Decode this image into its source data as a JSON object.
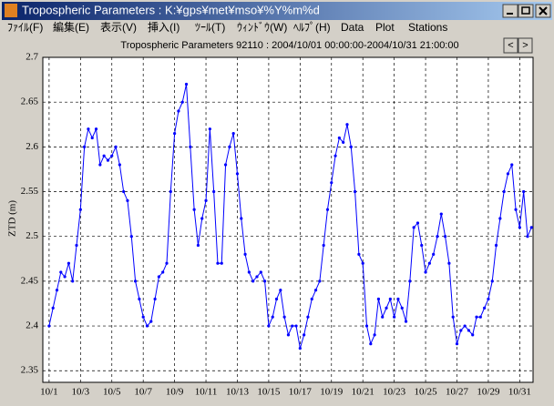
{
  "window": {
    "title": "Tropospheric Parameters : K:¥gps¥met¥mso¥%Y%m%d",
    "menu": [
      "ﾌｧｲﾙ(F)",
      "編集(E)",
      "表示(V)",
      "挿入(I)",
      "ﾂｰﾙ(T)",
      "ｳｨﾝﾄﾞｳ(W)",
      "ﾍﾙﾌﾟ(H)",
      "Data",
      "Plot",
      "Stations"
    ],
    "nav_buttons": [
      "<",
      ">"
    ]
  },
  "chart_data": {
    "type": "line",
    "title": "Tropospheric Parameters 92110 : 2004/10/01 00:00:00-2004/10/31 21:00:00",
    "y_label": "ZTD (m)",
    "x": [
      1,
      1.25,
      1.5,
      1.75,
      2,
      2.25,
      2.5,
      2.75,
      3,
      3.25,
      3.5,
      3.75,
      4,
      4.25,
      4.5,
      4.75,
      5,
      5.25,
      5.5,
      5.75,
      6,
      6.25,
      6.5,
      6.75,
      7,
      7.25,
      7.5,
      7.75,
      8,
      8.25,
      8.5,
      8.75,
      9,
      9.25,
      9.5,
      9.75,
      10,
      10.25,
      10.5,
      10.75,
      11,
      11.25,
      11.5,
      11.75,
      12,
      12.25,
      12.5,
      12.75,
      13,
      13.25,
      13.5,
      13.75,
      14,
      14.25,
      14.5,
      14.75,
      15,
      15.25,
      15.5,
      15.75,
      16,
      16.25,
      16.5,
      16.75,
      17,
      17.25,
      17.5,
      17.75,
      18,
      18.25,
      18.5,
      18.75,
      19,
      19.25,
      19.5,
      19.75,
      20,
      20.25,
      20.5,
      20.75,
      21,
      21.25,
      21.5,
      21.75,
      22,
      22.25,
      22.5,
      22.75,
      23,
      23.25,
      23.5,
      23.75,
      24,
      24.25,
      24.5,
      24.75,
      25,
      25.25,
      25.5,
      25.75,
      26,
      26.25,
      26.5,
      26.75,
      27,
      27.25,
      27.5,
      27.75,
      28,
      28.25,
      28.5,
      28.75,
      29,
      29.25,
      29.5,
      29.75,
      30,
      30.25,
      30.5,
      30.75,
      31,
      31.25,
      31.5,
      31.75
    ],
    "series": [
      {
        "name": "ZTD",
        "color": "#0000ff",
        "values": [
          2.4,
          2.42,
          2.44,
          2.46,
          2.455,
          2.47,
          2.45,
          2.49,
          2.53,
          2.6,
          2.62,
          2.61,
          2.62,
          2.58,
          2.59,
          2.585,
          2.59,
          2.6,
          2.58,
          2.55,
          2.54,
          2.5,
          2.45,
          2.43,
          2.41,
          2.4,
          2.405,
          2.43,
          2.455,
          2.46,
          2.47,
          2.55,
          2.615,
          2.64,
          2.65,
          2.67,
          2.6,
          2.53,
          2.49,
          2.52,
          2.54,
          2.62,
          2.55,
          2.47,
          2.47,
          2.58,
          2.6,
          2.615,
          2.57,
          2.52,
          2.48,
          2.46,
          2.45,
          2.455,
          2.46,
          2.45,
          2.4,
          2.41,
          2.43,
          2.44,
          2.41,
          2.39,
          2.4,
          2.4,
          2.375,
          2.39,
          2.41,
          2.43,
          2.44,
          2.45,
          2.49,
          2.53,
          2.56,
          2.59,
          2.61,
          2.605,
          2.625,
          2.6,
          2.55,
          2.48,
          2.47,
          2.4,
          2.38,
          2.39,
          2.43,
          2.41,
          2.42,
          2.43,
          2.41,
          2.43,
          2.42,
          2.405,
          2.45,
          2.51,
          2.515,
          2.49,
          2.46,
          2.47,
          2.48,
          2.5,
          2.525,
          2.5,
          2.47,
          2.41,
          2.38,
          2.395,
          2.4,
          2.395,
          2.39,
          2.41,
          2.41,
          2.42,
          2.43,
          2.45,
          2.49,
          2.52,
          2.55,
          2.57,
          2.58,
          2.53,
          2.51,
          2.55,
          2.5,
          2.51
        ]
      }
    ],
    "xlim": [
      0.6,
      31.85
    ],
    "ylim": [
      2.337,
      2.7
    ],
    "xticks": [
      {
        "value": 1,
        "label": "10/1"
      },
      {
        "value": 3,
        "label": "10/3"
      },
      {
        "value": 5,
        "label": "10/5"
      },
      {
        "value": 7,
        "label": "10/7"
      },
      {
        "value": 9,
        "label": "10/9"
      },
      {
        "value": 11,
        "label": "10/11"
      },
      {
        "value": 13,
        "label": "10/13"
      },
      {
        "value": 15,
        "label": "10/15"
      },
      {
        "value": 17,
        "label": "10/17"
      },
      {
        "value": 19,
        "label": "10/19"
      },
      {
        "value": 21,
        "label": "10/21"
      },
      {
        "value": 23,
        "label": "10/23"
      },
      {
        "value": 25,
        "label": "10/25"
      },
      {
        "value": 27,
        "label": "10/27"
      },
      {
        "value": 29,
        "label": "10/29"
      },
      {
        "value": 31,
        "label": "10/31"
      }
    ],
    "yticks": [
      2.35,
      2.4,
      2.45,
      2.5,
      2.55,
      2.6,
      2.65,
      2.7
    ],
    "grid": true
  }
}
